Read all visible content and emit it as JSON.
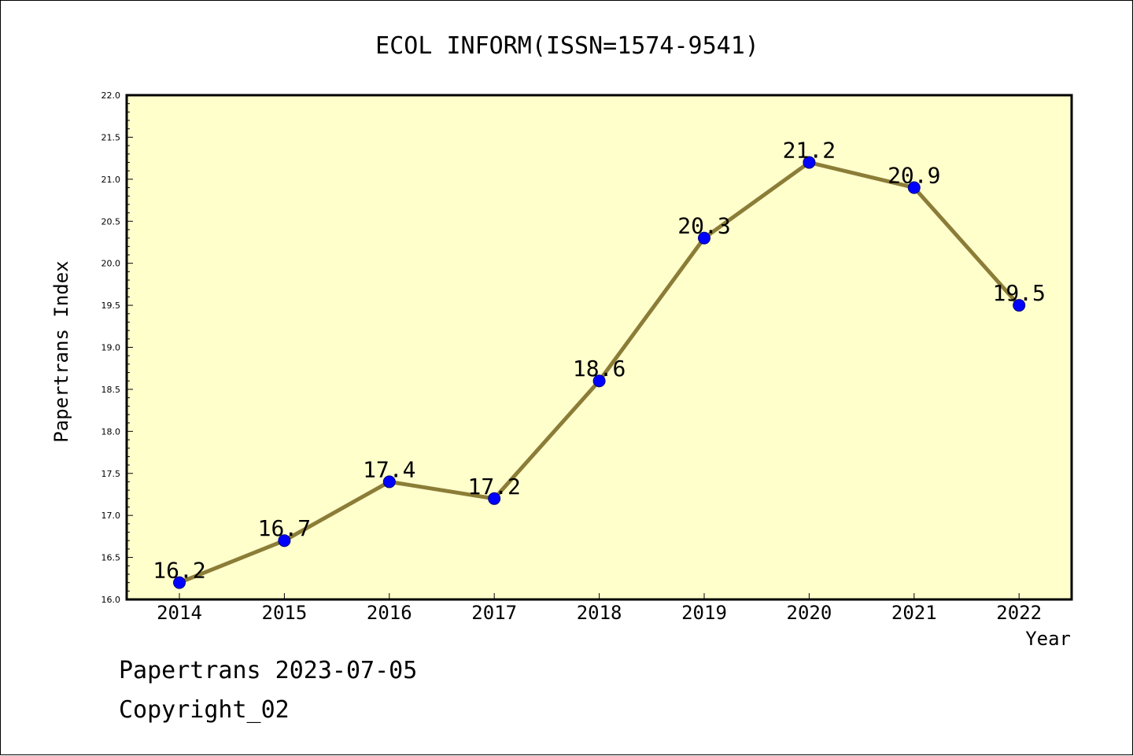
{
  "chart_data": {
    "type": "line",
    "title": "ECOL INFORM(ISSN=1574-9541)",
    "xlabel": "Year",
    "ylabel": "Papertrans Index",
    "categories": [
      "2014",
      "2015",
      "2016",
      "2017",
      "2018",
      "2019",
      "2020",
      "2021",
      "2022"
    ],
    "series": [
      {
        "values": [
          16.2,
          16.7,
          17.4,
          17.2,
          18.6,
          20.3,
          21.2,
          20.9,
          19.5
        ]
      }
    ],
    "data_labels": [
      "16.2",
      "16.7",
      "17.4",
      "17.2",
      "18.6",
      "20.3",
      "21.2",
      "20.9",
      "19.5"
    ],
    "ylim": [
      16.0,
      22.0
    ],
    "yticks": [
      "16.0",
      "16.5",
      "17.0",
      "17.5",
      "18.0",
      "18.5",
      "19.0",
      "19.5",
      "20.0",
      "20.5",
      "21.0",
      "21.5",
      "22.0"
    ],
    "grid": false,
    "colors": {
      "plot_background": "#ffffcc",
      "line": "#8b7d37",
      "marker_fill": "#0000ff",
      "marker_edge": "#000080"
    }
  },
  "footer": {
    "date_line": "Papertrans 2023-07-05",
    "copyright_line": "Copyright_02"
  }
}
